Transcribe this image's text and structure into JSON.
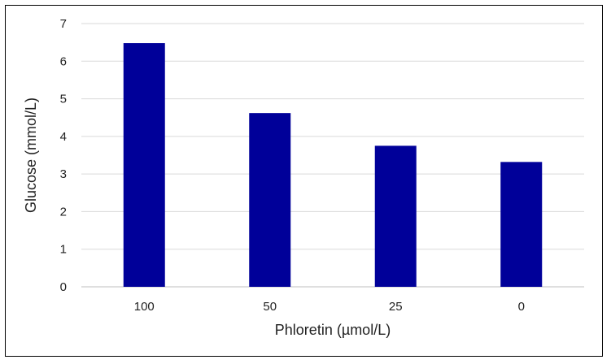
{
  "chart_data": {
    "type": "bar",
    "title": "",
    "xlabel": "Phloretin (µmol/L)",
    "ylabel": "Glucose (mmol/L)",
    "categories": [
      "100",
      "50",
      "25",
      "0"
    ],
    "values": [
      6.48,
      4.62,
      3.75,
      3.32
    ],
    "ylim": [
      0,
      7
    ],
    "yticks": [
      "0",
      "1",
      "2",
      "3",
      "4",
      "5",
      "6",
      "7"
    ],
    "grid": true,
    "legend": "none",
    "colors": {
      "bar": "#000099",
      "grid": "#d9d9d9",
      "baseline": "#bfbfbf"
    }
  }
}
